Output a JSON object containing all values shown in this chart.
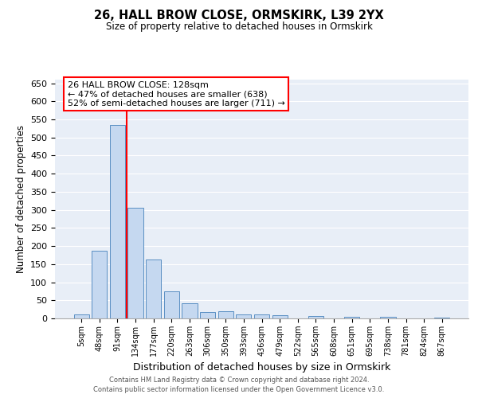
{
  "title": "26, HALL BROW CLOSE, ORMSKIRK, L39 2YX",
  "subtitle": "Size of property relative to detached houses in Ormskirk",
  "xlabel": "Distribution of detached houses by size in Ormskirk",
  "ylabel": "Number of detached properties",
  "bar_labels": [
    "5sqm",
    "48sqm",
    "91sqm",
    "134sqm",
    "177sqm",
    "220sqm",
    "263sqm",
    "306sqm",
    "350sqm",
    "393sqm",
    "436sqm",
    "479sqm",
    "522sqm",
    "565sqm",
    "608sqm",
    "651sqm",
    "695sqm",
    "738sqm",
    "781sqm",
    "824sqm",
    "867sqm"
  ],
  "bar_values": [
    10,
    186,
    535,
    305,
    163,
    74,
    42,
    17,
    20,
    12,
    10,
    8,
    0,
    6,
    1,
    4,
    0,
    5,
    0,
    0,
    3
  ],
  "bar_color": "#c5d8f0",
  "bar_edge_color": "#5a8fc3",
  "vline_color": "red",
  "annotation_text": "26 HALL BROW CLOSE: 128sqm\n← 47% of detached houses are smaller (638)\n52% of semi-detached houses are larger (711) →",
  "annotation_box_color": "white",
  "annotation_box_edge": "red",
  "ylim": [
    0,
    660
  ],
  "yticks": [
    0,
    50,
    100,
    150,
    200,
    250,
    300,
    350,
    400,
    450,
    500,
    550,
    600,
    650
  ],
  "bg_color": "#e8eef7",
  "footer_line1": "Contains HM Land Registry data © Crown copyright and database right 2024.",
  "footer_line2": "Contains public sector information licensed under the Open Government Licence v3.0."
}
